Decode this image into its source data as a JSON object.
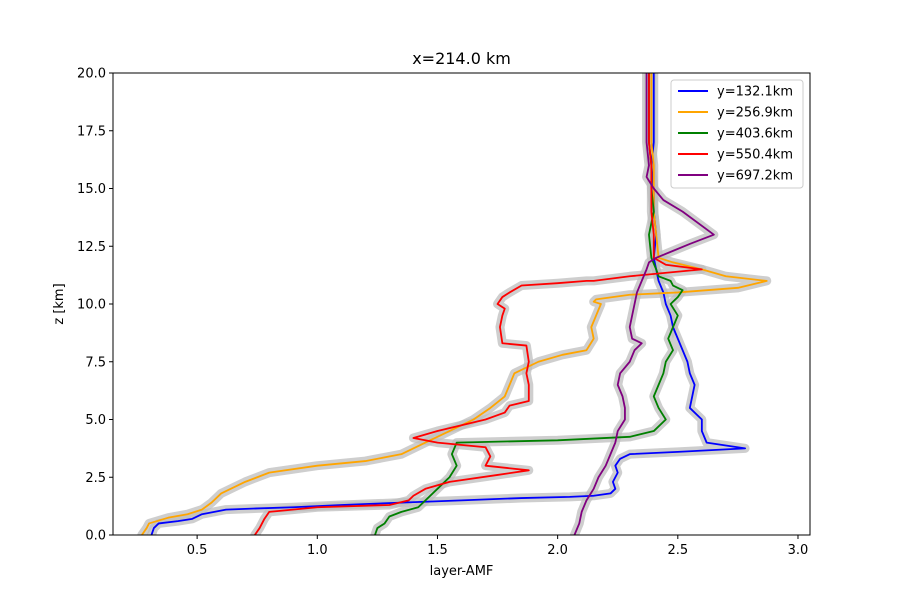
{
  "chart_data": {
    "type": "line",
    "title": "x=214.0 km",
    "xlabel": "layer-AMF",
    "ylabel": "z [km]",
    "xlim": [
      0.15,
      3.05
    ],
    "ylim": [
      0,
      20
    ],
    "xticks": [
      0.5,
      1.0,
      1.5,
      2.0,
      2.5,
      3.0
    ],
    "xtick_labels": [
      "0.5",
      "1.0",
      "1.5",
      "2.0",
      "2.5",
      "3.0"
    ],
    "yticks": [
      0,
      2.5,
      5,
      7.5,
      10,
      12.5,
      15,
      17.5,
      20
    ],
    "ytick_labels": [
      "0.0",
      "2.5",
      "5.0",
      "7.5",
      "10.0",
      "12.5",
      "15.0",
      "17.5",
      "20.0"
    ],
    "grid": false,
    "legend_position": "top-right",
    "uncertainty_band": {
      "color": "#bebebe"
    },
    "series": [
      {
        "name": "y=132.1km",
        "color": "#0000ff",
        "x": [
          0.31,
          0.32,
          0.34,
          0.42,
          0.48,
          0.52,
          0.62,
          0.75,
          0.9,
          1.1,
          1.35,
          1.6,
          1.85,
          2.05,
          2.15,
          2.22,
          2.24,
          2.23,
          2.25,
          2.24,
          2.26,
          2.3,
          2.5,
          2.78,
          2.62,
          2.6,
          2.6,
          2.55,
          2.56,
          2.57,
          2.55,
          2.54,
          2.52,
          2.5,
          2.48,
          2.47,
          2.45,
          2.44,
          2.42,
          2.41,
          2.4,
          2.41,
          2.4,
          2.4,
          2.39,
          2.4,
          2.4,
          2.4
        ],
        "y": [
          0.0,
          0.3,
          0.5,
          0.6,
          0.7,
          0.9,
          1.1,
          1.15,
          1.2,
          1.3,
          1.4,
          1.5,
          1.6,
          1.65,
          1.7,
          1.8,
          2.0,
          2.3,
          2.7,
          3.0,
          3.3,
          3.5,
          3.6,
          3.75,
          4.0,
          4.5,
          5.0,
          5.5,
          6.0,
          6.5,
          7.0,
          7.5,
          8.0,
          8.5,
          9.0,
          9.5,
          10.0,
          10.5,
          11.0,
          11.5,
          12.0,
          13.0,
          14.0,
          15.0,
          16.0,
          17.0,
          18.0,
          20.0
        ]
      },
      {
        "name": "y=256.9km",
        "color": "#ffa500",
        "x": [
          0.27,
          0.29,
          0.3,
          0.38,
          0.46,
          0.52,
          0.56,
          0.6,
          0.7,
          0.8,
          1.0,
          1.2,
          1.35,
          1.45,
          1.55,
          1.65,
          1.72,
          1.78,
          1.8,
          1.82,
          1.92,
          2.02,
          2.12,
          2.15,
          2.14,
          2.16,
          2.18,
          2.15,
          2.16,
          2.3,
          2.5,
          2.75,
          2.87,
          2.7,
          2.6,
          2.48,
          2.42,
          2.41,
          2.4,
          2.4,
          2.4,
          2.39,
          2.39,
          2.39
        ],
        "y": [
          0.0,
          0.3,
          0.5,
          0.75,
          0.9,
          1.1,
          1.4,
          1.8,
          2.3,
          2.7,
          3.0,
          3.2,
          3.5,
          4.0,
          4.5,
          5.0,
          5.5,
          6.0,
          6.5,
          7.0,
          7.5,
          7.8,
          8.0,
          8.5,
          9.0,
          9.5,
          10.0,
          10.1,
          10.2,
          10.4,
          10.5,
          10.7,
          11.0,
          11.2,
          11.5,
          11.8,
          12.0,
          13.0,
          14.0,
          15.0,
          16.0,
          17.0,
          18.0,
          20.0
        ]
      },
      {
        "name": "y=403.6km",
        "color": "#008000",
        "x": [
          1.24,
          1.25,
          1.28,
          1.3,
          1.35,
          1.42,
          1.45,
          1.5,
          1.55,
          1.58,
          1.56,
          1.58,
          2.0,
          2.3,
          2.4,
          2.45,
          2.42,
          2.4,
          2.42,
          2.44,
          2.45,
          2.48,
          2.46,
          2.48,
          2.5,
          2.47,
          2.5,
          2.52,
          2.48,
          2.47,
          2.42,
          2.41,
          2.39,
          2.38,
          2.4,
          2.39,
          2.39,
          2.38,
          2.38
        ],
        "y": [
          0.0,
          0.3,
          0.5,
          0.8,
          1.0,
          1.2,
          1.5,
          2.0,
          2.5,
          3.0,
          3.5,
          4.0,
          4.1,
          4.25,
          4.5,
          5.0,
          5.5,
          6.0,
          6.5,
          7.0,
          7.5,
          8.0,
          8.5,
          9.0,
          9.5,
          10.0,
          10.3,
          10.6,
          10.8,
          11.0,
          11.2,
          11.5,
          12.0,
          13.0,
          14.0,
          15.0,
          16.0,
          17.0,
          20.0
        ]
      },
      {
        "name": "y=550.4km",
        "color": "#ff0000",
        "x": [
          0.74,
          0.76,
          0.78,
          0.8,
          1.0,
          1.3,
          1.38,
          1.4,
          1.45,
          1.55,
          1.75,
          1.88,
          1.7,
          1.72,
          1.7,
          1.5,
          1.4,
          1.5,
          1.7,
          1.78,
          1.8,
          1.88,
          1.88,
          1.87,
          1.88,
          1.87,
          1.77,
          1.76,
          1.77,
          1.78,
          1.75,
          1.77,
          1.8,
          1.85,
          2.0,
          2.12,
          2.15,
          2.3,
          2.6,
          2.45,
          2.4,
          2.4,
          2.39,
          2.39,
          2.39,
          2.38,
          2.38
        ],
        "y": [
          0.0,
          0.3,
          0.7,
          1.0,
          1.2,
          1.3,
          1.5,
          1.7,
          2.0,
          2.3,
          2.6,
          2.8,
          3.0,
          3.4,
          3.8,
          4.0,
          4.2,
          4.5,
          5.0,
          5.3,
          5.6,
          5.8,
          6.5,
          7.0,
          7.5,
          8.2,
          8.3,
          9.0,
          9.5,
          9.8,
          10.0,
          10.3,
          10.5,
          10.8,
          10.9,
          11.0,
          11.0,
          11.2,
          11.5,
          11.7,
          12.0,
          13.0,
          14.0,
          15.0,
          16.0,
          17.0,
          20.0
        ]
      },
      {
        "name": "y=697.2km",
        "color": "#800080",
        "x": [
          2.07,
          2.09,
          2.1,
          2.12,
          2.15,
          2.17,
          2.2,
          2.22,
          2.24,
          2.25,
          2.28,
          2.28,
          2.27,
          2.25,
          2.26,
          2.3,
          2.32,
          2.35,
          2.31,
          2.3,
          2.32,
          2.33,
          2.35,
          2.37,
          2.38,
          2.41,
          2.48,
          2.55,
          2.65,
          2.52,
          2.44,
          2.4,
          2.37,
          2.38,
          2.37,
          2.37
        ],
        "y": [
          0.0,
          0.5,
          1.0,
          1.5,
          2.0,
          2.5,
          3.0,
          3.5,
          4.0,
          4.5,
          5.0,
          5.5,
          6.0,
          6.5,
          7.0,
          7.5,
          8.0,
          8.3,
          8.5,
          9.0,
          10.0,
          10.5,
          11.0,
          11.5,
          11.8,
          12.0,
          12.3,
          12.6,
          13.0,
          14.0,
          14.5,
          15.0,
          15.5,
          16.0,
          17.0,
          20.0
        ]
      }
    ]
  }
}
